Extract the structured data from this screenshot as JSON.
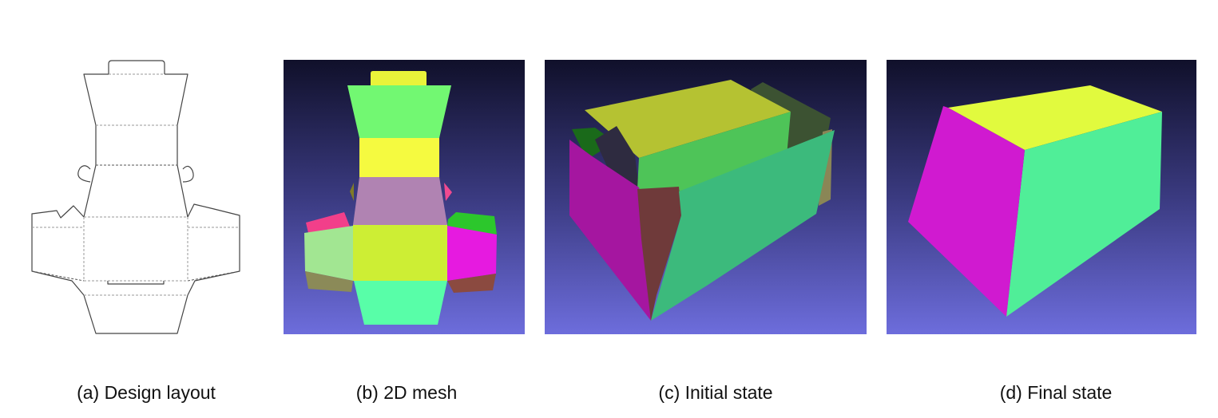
{
  "panels": [
    {
      "id": "a",
      "caption": "(a) Design layout"
    },
    {
      "id": "b",
      "caption": "(b) 2D mesh"
    },
    {
      "id": "c",
      "caption": "(c) Initial state"
    },
    {
      "id": "d",
      "caption": "(d) Final state"
    }
  ],
  "colors": {
    "viewport_top": "#10102a",
    "viewport_mid": "#3a3a80",
    "viewport_bottom": "#6d6ddc",
    "outline": "#444444",
    "fold_line": "#9a9a9a",
    "magenta": "#d01ad0",
    "mint": "#50ee98",
    "yellow": "#e1fa3e",
    "lime": "#cdee34",
    "light_green": "#72f872",
    "mauve": "#b083b2",
    "pink": "#f23f8a",
    "pale_green": "#a2e692",
    "green": "#2cc72c",
    "olive": "#7f7b48",
    "brown": "#8b4a40",
    "aqua": "#58fea8"
  }
}
